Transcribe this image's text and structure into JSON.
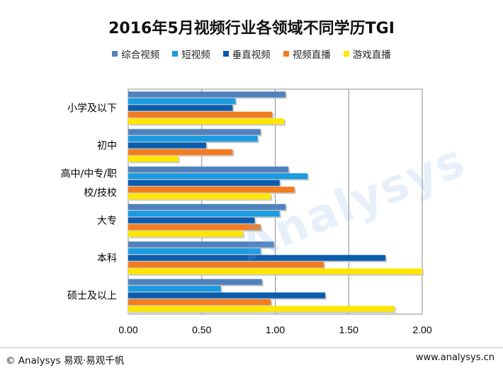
{
  "chart_data": {
    "type": "bar",
    "orientation": "horizontal",
    "title": "2016年5月视频行业各领域不同学历TGI",
    "categories": [
      "小学及以下",
      "初中",
      "高中/中专/职校/技校",
      "大专",
      "本科",
      "硕士及以上"
    ],
    "category_label_lines": [
      [
        "小学及以下"
      ],
      [
        "初中"
      ],
      [
        "高中/中专/职",
        "校/技校"
      ],
      [
        "大专"
      ],
      [
        "本科"
      ],
      [
        "硕士及以上"
      ]
    ],
    "series": [
      {
        "name": "综合视频",
        "color": "#4f81bd",
        "values": [
          1.07,
          0.9,
          1.09,
          1.07,
          0.99,
          0.91
        ]
      },
      {
        "name": "短视频",
        "color": "#1b9ce2",
        "values": [
          0.73,
          0.88,
          1.22,
          1.03,
          0.9,
          0.63
        ]
      },
      {
        "name": "垂直视频",
        "color": "#0b5cad",
        "values": [
          0.71,
          0.53,
          1.03,
          0.86,
          1.75,
          1.34
        ]
      },
      {
        "name": "视频直播",
        "color": "#f47c20",
        "values": [
          0.98,
          0.71,
          1.13,
          0.9,
          1.33,
          0.97
        ]
      },
      {
        "name": "游戏直播",
        "color": "#ffe600",
        "values": [
          1.06,
          0.34,
          0.97,
          0.78,
          2.0,
          1.81
        ]
      }
    ],
    "x_ticks": [
      "0.00",
      "0.50",
      "1.00",
      "1.50",
      "2.00"
    ],
    "xlim": [
      0,
      2
    ],
    "grid": true,
    "legend_position": "top"
  },
  "footer": {
    "copyright": "© Analysys 易观·易观千帆",
    "website": "www.analysys.cn"
  },
  "watermark_text": "Analysys"
}
